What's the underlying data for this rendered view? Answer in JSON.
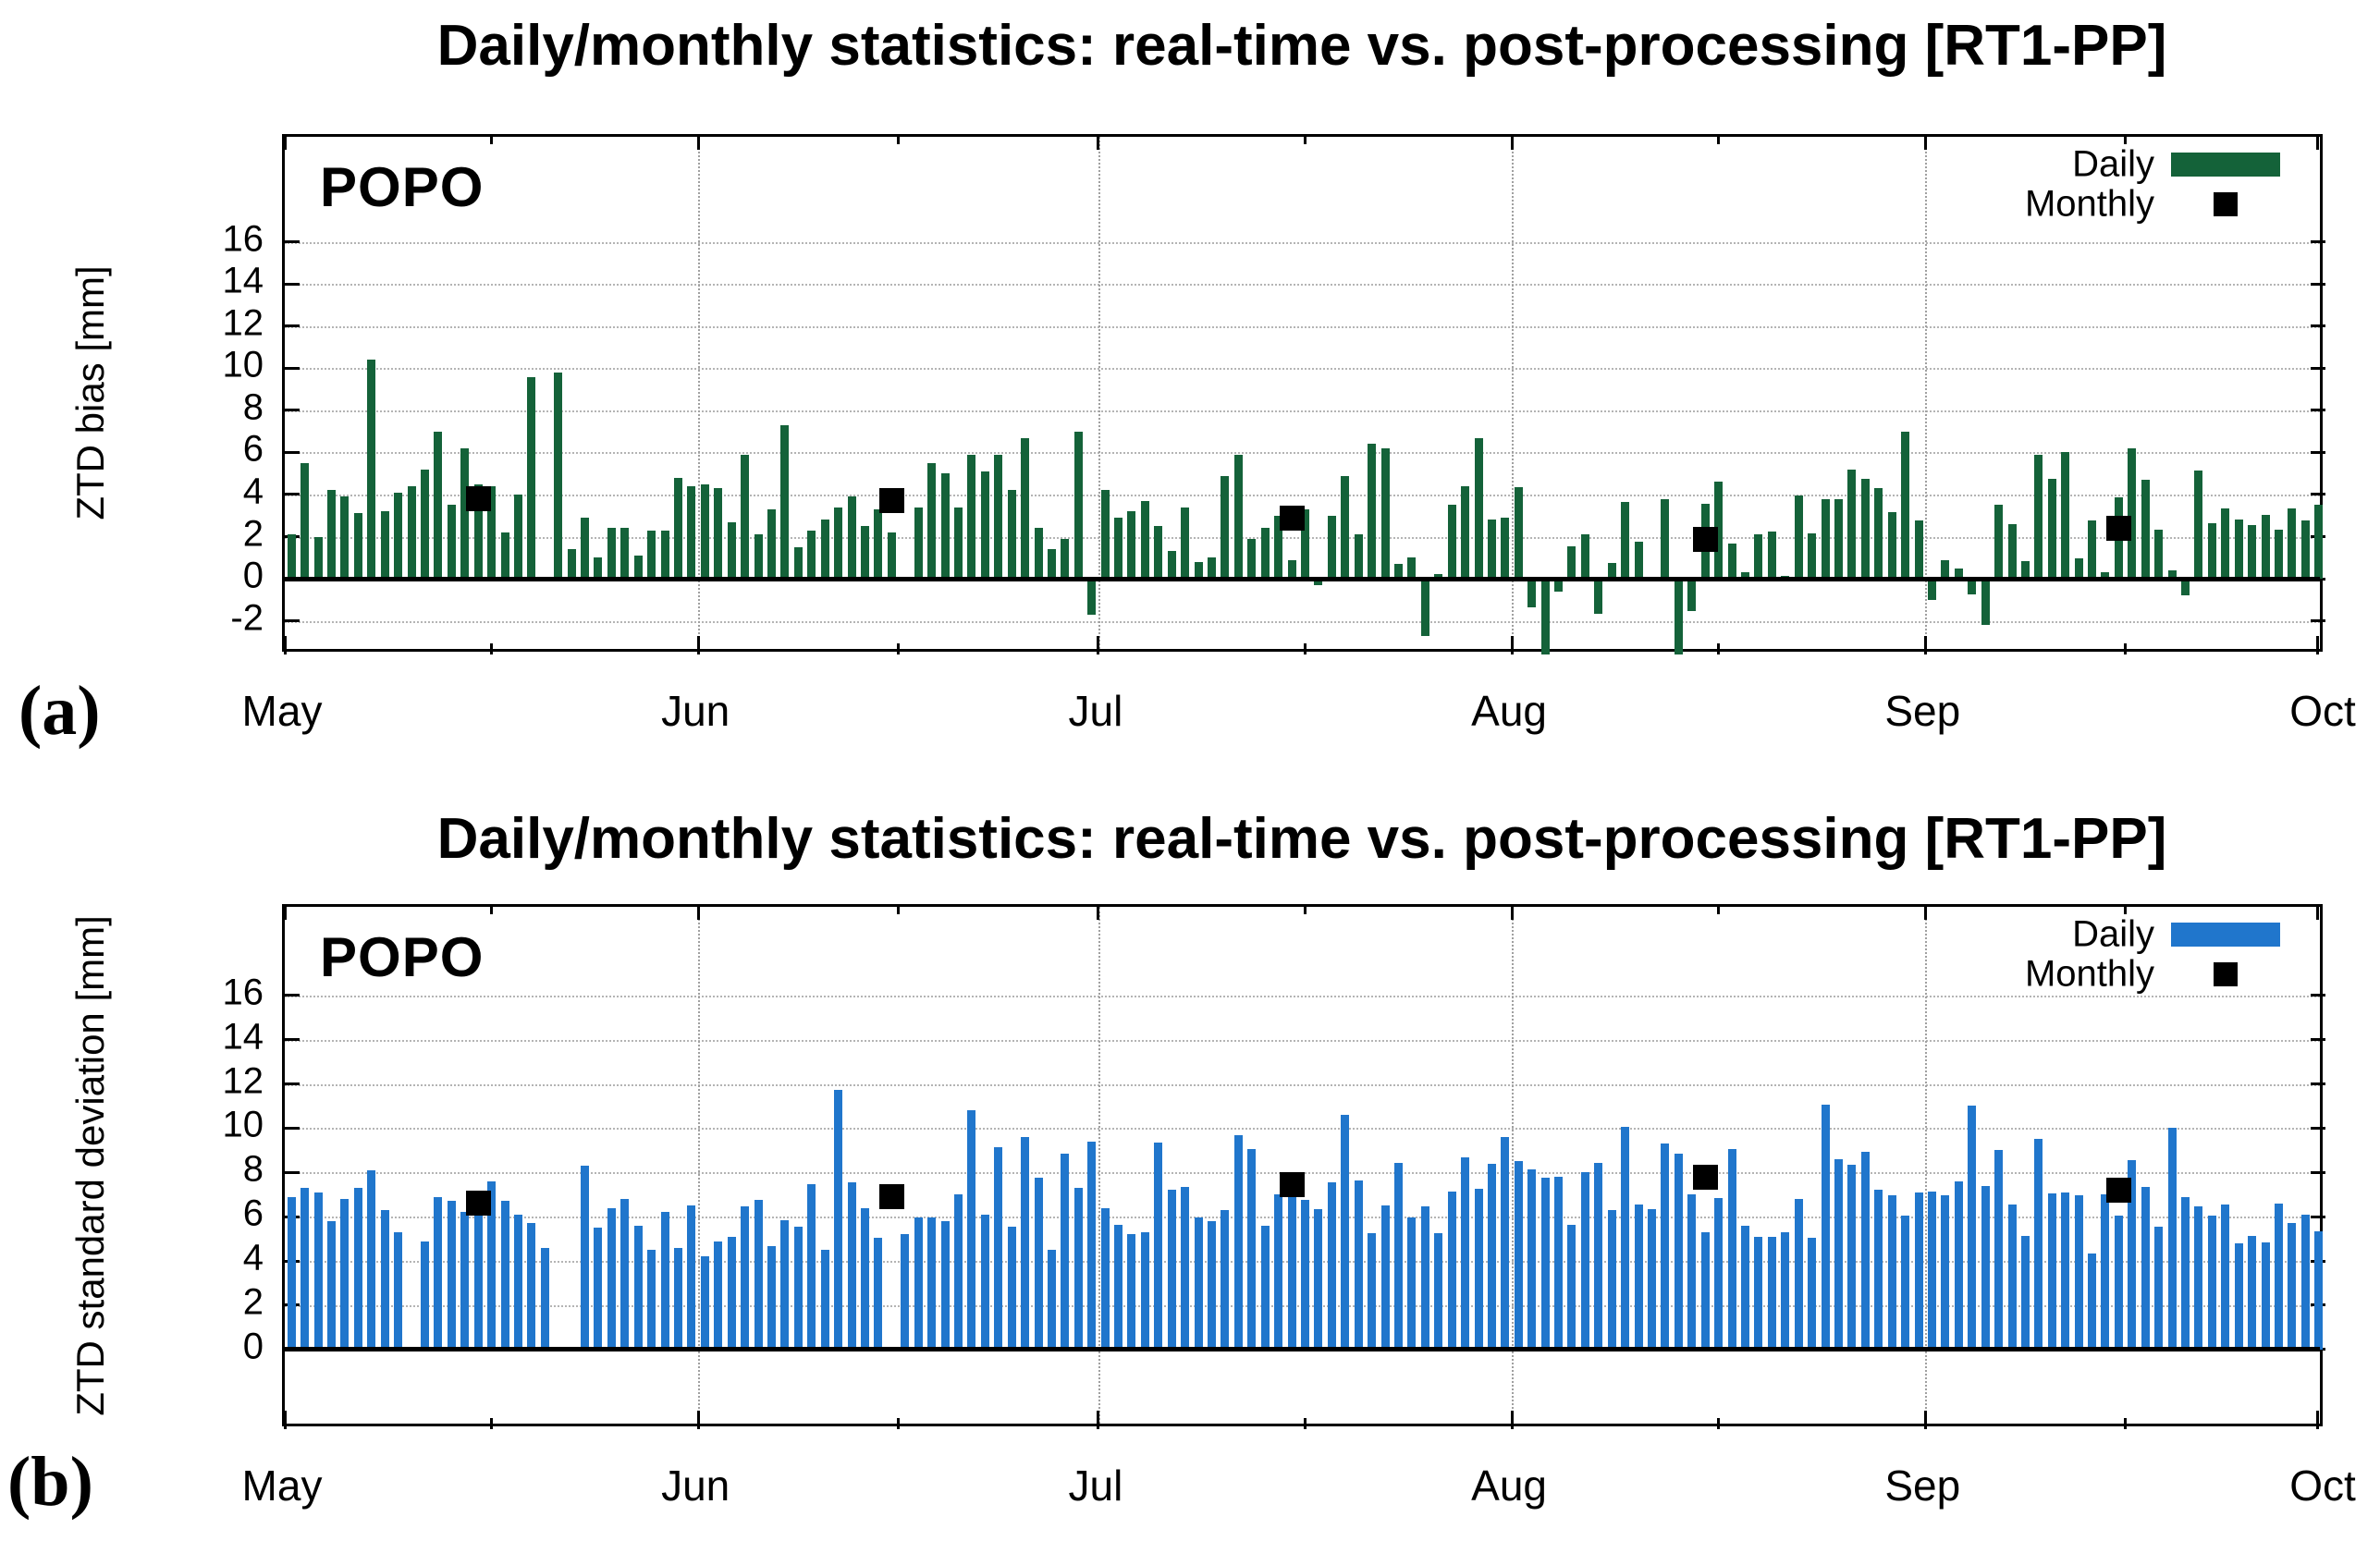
{
  "panels": [
    {
      "id": "a",
      "corner_label": "(a)",
      "title": "Daily/monthly statistics: real-time vs. post-processing [RT1-PP]",
      "station": "POPO",
      "ylabel": "ZTD bias [mm]",
      "legend": {
        "daily_label": "Daily",
        "monthly_label": "Monthly"
      },
      "bar_color": "#146239",
      "marker_color": "#000000"
    },
    {
      "id": "b",
      "corner_label": "(b)",
      "title": "Daily/monthly statistics: real-time vs. post-processing [RT1-PP]",
      "station": "POPO",
      "ylabel": "ZTD standard deviation [mm]",
      "legend": {
        "daily_label": "Daily",
        "monthly_label": "Monthly"
      },
      "bar_color": "#2076CC",
      "marker_color": "#000000"
    }
  ],
  "chart_data": [
    {
      "type": "bar",
      "panel": "a",
      "title": "Daily/monthly statistics: real-time vs. post-processing [RT1-PP]",
      "station": "POPO",
      "ylabel": "ZTD bias [mm]",
      "xtick_labels": [
        "May",
        "Jun",
        "Jul",
        "Aug",
        "Sep",
        "Oct"
      ],
      "ytick_values": [
        16,
        14,
        12,
        10,
        8,
        6,
        4,
        2,
        0,
        -2
      ],
      "ylim": [
        -3.6,
        21.0
      ],
      "grid": true,
      "legend_position": "top-right",
      "months_order": [
        "May",
        "Jun",
        "Jul",
        "Aug",
        "Sep"
      ],
      "days_per_month": [
        31,
        30,
        31,
        31,
        30
      ],
      "daily_by_month": {
        "May": [
          2.1,
          5.5,
          2.0,
          4.2,
          3.9,
          3.1,
          10.4,
          3.2,
          4.1,
          4.4,
          5.2,
          7.0,
          3.5,
          6.2,
          4.5,
          4.4,
          2.2,
          4.0,
          9.6,
          null,
          9.8,
          1.4,
          2.9,
          1.0,
          2.4,
          2.4,
          1.1,
          2.3,
          2.3,
          4.8,
          4.4
        ],
        "Jun": [
          4.5,
          4.3,
          2.7,
          5.9,
          2.1,
          3.3,
          7.3,
          1.5,
          2.3,
          2.8,
          3.4,
          3.9,
          2.5,
          3.3,
          2.2,
          null,
          3.4,
          5.5,
          5.0,
          3.4,
          5.9,
          5.1,
          5.9,
          4.2,
          6.7,
          2.4,
          1.4,
          1.9,
          7.0,
          -1.7
        ],
        "Jul": [
          4.2,
          2.9,
          3.2,
          3.7,
          2.5,
          1.3,
          3.4,
          0.8,
          1.0,
          4.9,
          5.9,
          1.9,
          2.4,
          3.0,
          0.9,
          3.3,
          -0.3,
          3.0,
          4.9,
          2.1,
          6.4,
          6.2,
          0.7,
          1.0,
          -2.7,
          0.2,
          3.5,
          4.4,
          6.7,
          2.8,
          2.9
        ],
        "Aug": [
          4.35,
          -1.35,
          -3.7,
          -0.6,
          1.55,
          2.1,
          -1.65,
          0.75,
          3.65,
          1.75,
          -0.15,
          3.8,
          -3.7,
          -1.55,
          3.55,
          4.6,
          1.65,
          0.3,
          2.1,
          2.25,
          0.15,
          3.95,
          2.15,
          3.8,
          3.8,
          5.2,
          4.75,
          4.3,
          3.15,
          7.0,
          2.75
        ],
        "Sep": [
          -1.0,
          0.9,
          0.5,
          -0.75,
          -2.2,
          3.5,
          2.6,
          0.85,
          5.9,
          4.75,
          6.0,
          0.95,
          2.75,
          0.3,
          3.85,
          6.2,
          4.7,
          2.35,
          0.4,
          -0.8,
          5.15,
          2.65,
          3.35,
          2.8,
          2.55,
          3.05,
          2.35,
          3.35,
          2.75,
          3.5
        ]
      },
      "monthly": {
        "months": [
          "May",
          "Jun",
          "Jul",
          "Aug",
          "Sep"
        ],
        "values": [
          3.8,
          3.7,
          2.9,
          1.85,
          2.4
        ]
      },
      "series_colors": {
        "daily": "#146239",
        "monthly": "#000000"
      }
    },
    {
      "type": "bar",
      "panel": "b",
      "title": "Daily/monthly statistics: real-time vs. post-processing [RT1-PP]",
      "station": "POPO",
      "ylabel": "ZTD standard deviation [mm]",
      "xtick_labels": [
        "May",
        "Jun",
        "Jul",
        "Aug",
        "Sep",
        "Oct"
      ],
      "ytick_values": [
        16,
        14,
        12,
        10,
        8,
        6,
        4,
        2,
        0
      ],
      "ylim": [
        -3.6,
        20.0
      ],
      "grid": true,
      "legend_position": "top-right",
      "months_order": [
        "May",
        "Jun",
        "Jul",
        "Aug",
        "Sep"
      ],
      "days_per_month": [
        31,
        30,
        31,
        31,
        30
      ],
      "daily_by_month": {
        "May": [
          6.9,
          7.3,
          7.1,
          5.8,
          6.8,
          7.3,
          8.1,
          6.3,
          5.3,
          null,
          4.9,
          6.9,
          6.7,
          6.2,
          6.5,
          7.6,
          6.7,
          6.1,
          5.7,
          4.6,
          null,
          null,
          8.3,
          5.5,
          6.4,
          6.8,
          5.6,
          4.5,
          6.2,
          4.6,
          6.5
        ],
        "Jun": [
          4.2,
          4.9,
          5.1,
          6.45,
          6.75,
          4.65,
          5.85,
          5.55,
          7.45,
          4.5,
          11.75,
          7.55,
          6.4,
          5.05,
          null,
          5.2,
          5.95,
          5.95,
          5.8,
          7.0,
          10.8,
          6.1,
          9.15,
          5.55,
          9.6,
          7.75,
          4.5,
          8.85,
          7.3,
          9.4
        ],
        "Jul": [
          6.4,
          5.65,
          5.2,
          5.3,
          9.35,
          7.2,
          7.35,
          5.95,
          5.8,
          6.3,
          9.7,
          9.05,
          5.6,
          7.0,
          7.75,
          6.75,
          6.35,
          7.55,
          10.6,
          7.65,
          5.25,
          6.5,
          8.45,
          5.95,
          6.45,
          5.25,
          7.15,
          8.7,
          7.25,
          8.4,
          9.6
        ],
        "Aug": [
          8.5,
          8.15,
          7.75,
          7.8,
          5.65,
          8.0,
          8.45,
          6.3,
          10.05,
          6.55,
          6.35,
          9.3,
          8.85,
          7.0,
          5.3,
          6.85,
          9.05,
          5.6,
          5.1,
          5.1,
          5.3,
          6.8,
          5.05,
          11.05,
          8.6,
          8.35,
          8.95,
          7.2,
          6.95,
          6.05,
          7.1
        ],
        "Sep": [
          7.15,
          6.95,
          7.6,
          11.0,
          7.4,
          9.0,
          6.55,
          5.15,
          9.5,
          7.05,
          7.1,
          6.95,
          4.35,
          7.0,
          6.05,
          8.55,
          7.35,
          5.55,
          10.0,
          6.9,
          6.45,
          6.05,
          6.55,
          4.8,
          5.15,
          4.85,
          6.6,
          5.7,
          6.1,
          5.35
        ]
      },
      "monthly": {
        "months": [
          "May",
          "Jun",
          "Jul",
          "Aug",
          "Sep"
        ],
        "values": [
          6.6,
          6.9,
          7.45,
          7.8,
          7.2
        ]
      },
      "series_colors": {
        "daily": "#2076CC",
        "monthly": "#000000"
      }
    }
  ]
}
